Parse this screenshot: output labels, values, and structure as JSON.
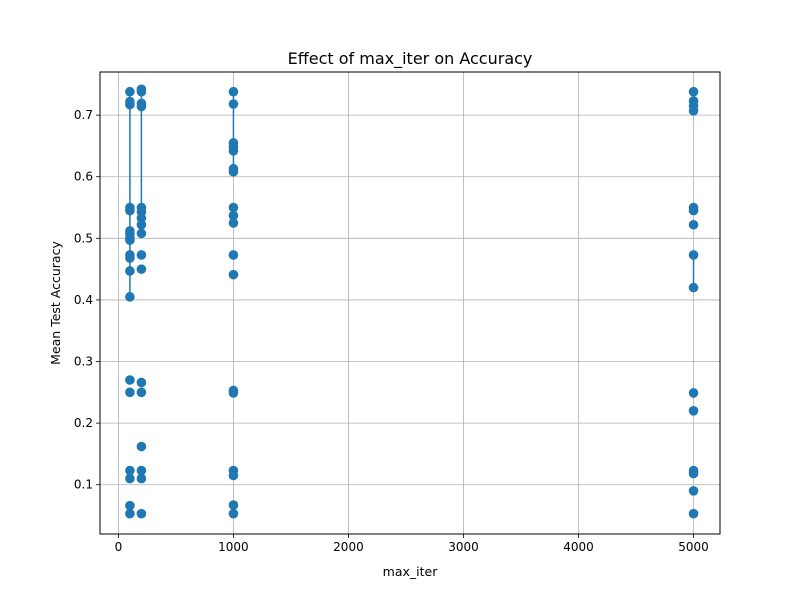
{
  "chart_data": {
    "type": "scatter",
    "title": "Effect of max_iter on Accuracy",
    "xlabel": "max_iter",
    "ylabel": "Mean Test Accuracy",
    "xlim": [
      -160,
      5230
    ],
    "ylim": [
      0.02,
      0.77
    ],
    "xticks": [
      0,
      1000,
      2000,
      3000,
      4000,
      5000
    ],
    "yticks": [
      0.1,
      0.2,
      0.3,
      0.4,
      0.5,
      0.6,
      0.7
    ],
    "ytick_labels": [
      "0.1",
      "0.2",
      "0.3",
      "0.4",
      "0.5",
      "0.6",
      "0.7"
    ],
    "grid": true,
    "color": "#1f77b4",
    "series": [
      {
        "x": 100,
        "y": [
          0.738,
          0.722,
          0.717,
          0.55,
          0.545,
          0.512,
          0.507,
          0.5,
          0.497,
          0.473,
          0.468,
          0.447,
          0.405,
          0.27,
          0.25,
          0.123,
          0.11,
          0.066,
          0.053
        ],
        "line": [
          0.405,
          0.738
        ]
      },
      {
        "x": 200,
        "y": [
          0.742,
          0.738,
          0.719,
          0.714,
          0.55,
          0.543,
          0.533,
          0.522,
          0.508,
          0.473,
          0.45,
          0.266,
          0.25,
          0.162,
          0.123,
          0.11,
          0.053
        ],
        "line": [
          0.508,
          0.742
        ]
      },
      {
        "x": 1000,
        "y": [
          0.738,
          0.718,
          0.655,
          0.648,
          0.642,
          0.613,
          0.608,
          0.55,
          0.537,
          0.525,
          0.473,
          0.441,
          0.253,
          0.249,
          0.123,
          0.115,
          0.067,
          0.053
        ],
        "line": [
          0.608,
          0.738
        ]
      },
      {
        "x": 5000,
        "y": [
          0.738,
          0.723,
          0.715,
          0.707,
          0.55,
          0.545,
          0.522,
          0.473,
          0.42,
          0.249,
          0.22,
          0.123,
          0.118,
          0.09,
          0.053
        ],
        "line": [
          0.42,
          0.473
        ]
      }
    ]
  }
}
